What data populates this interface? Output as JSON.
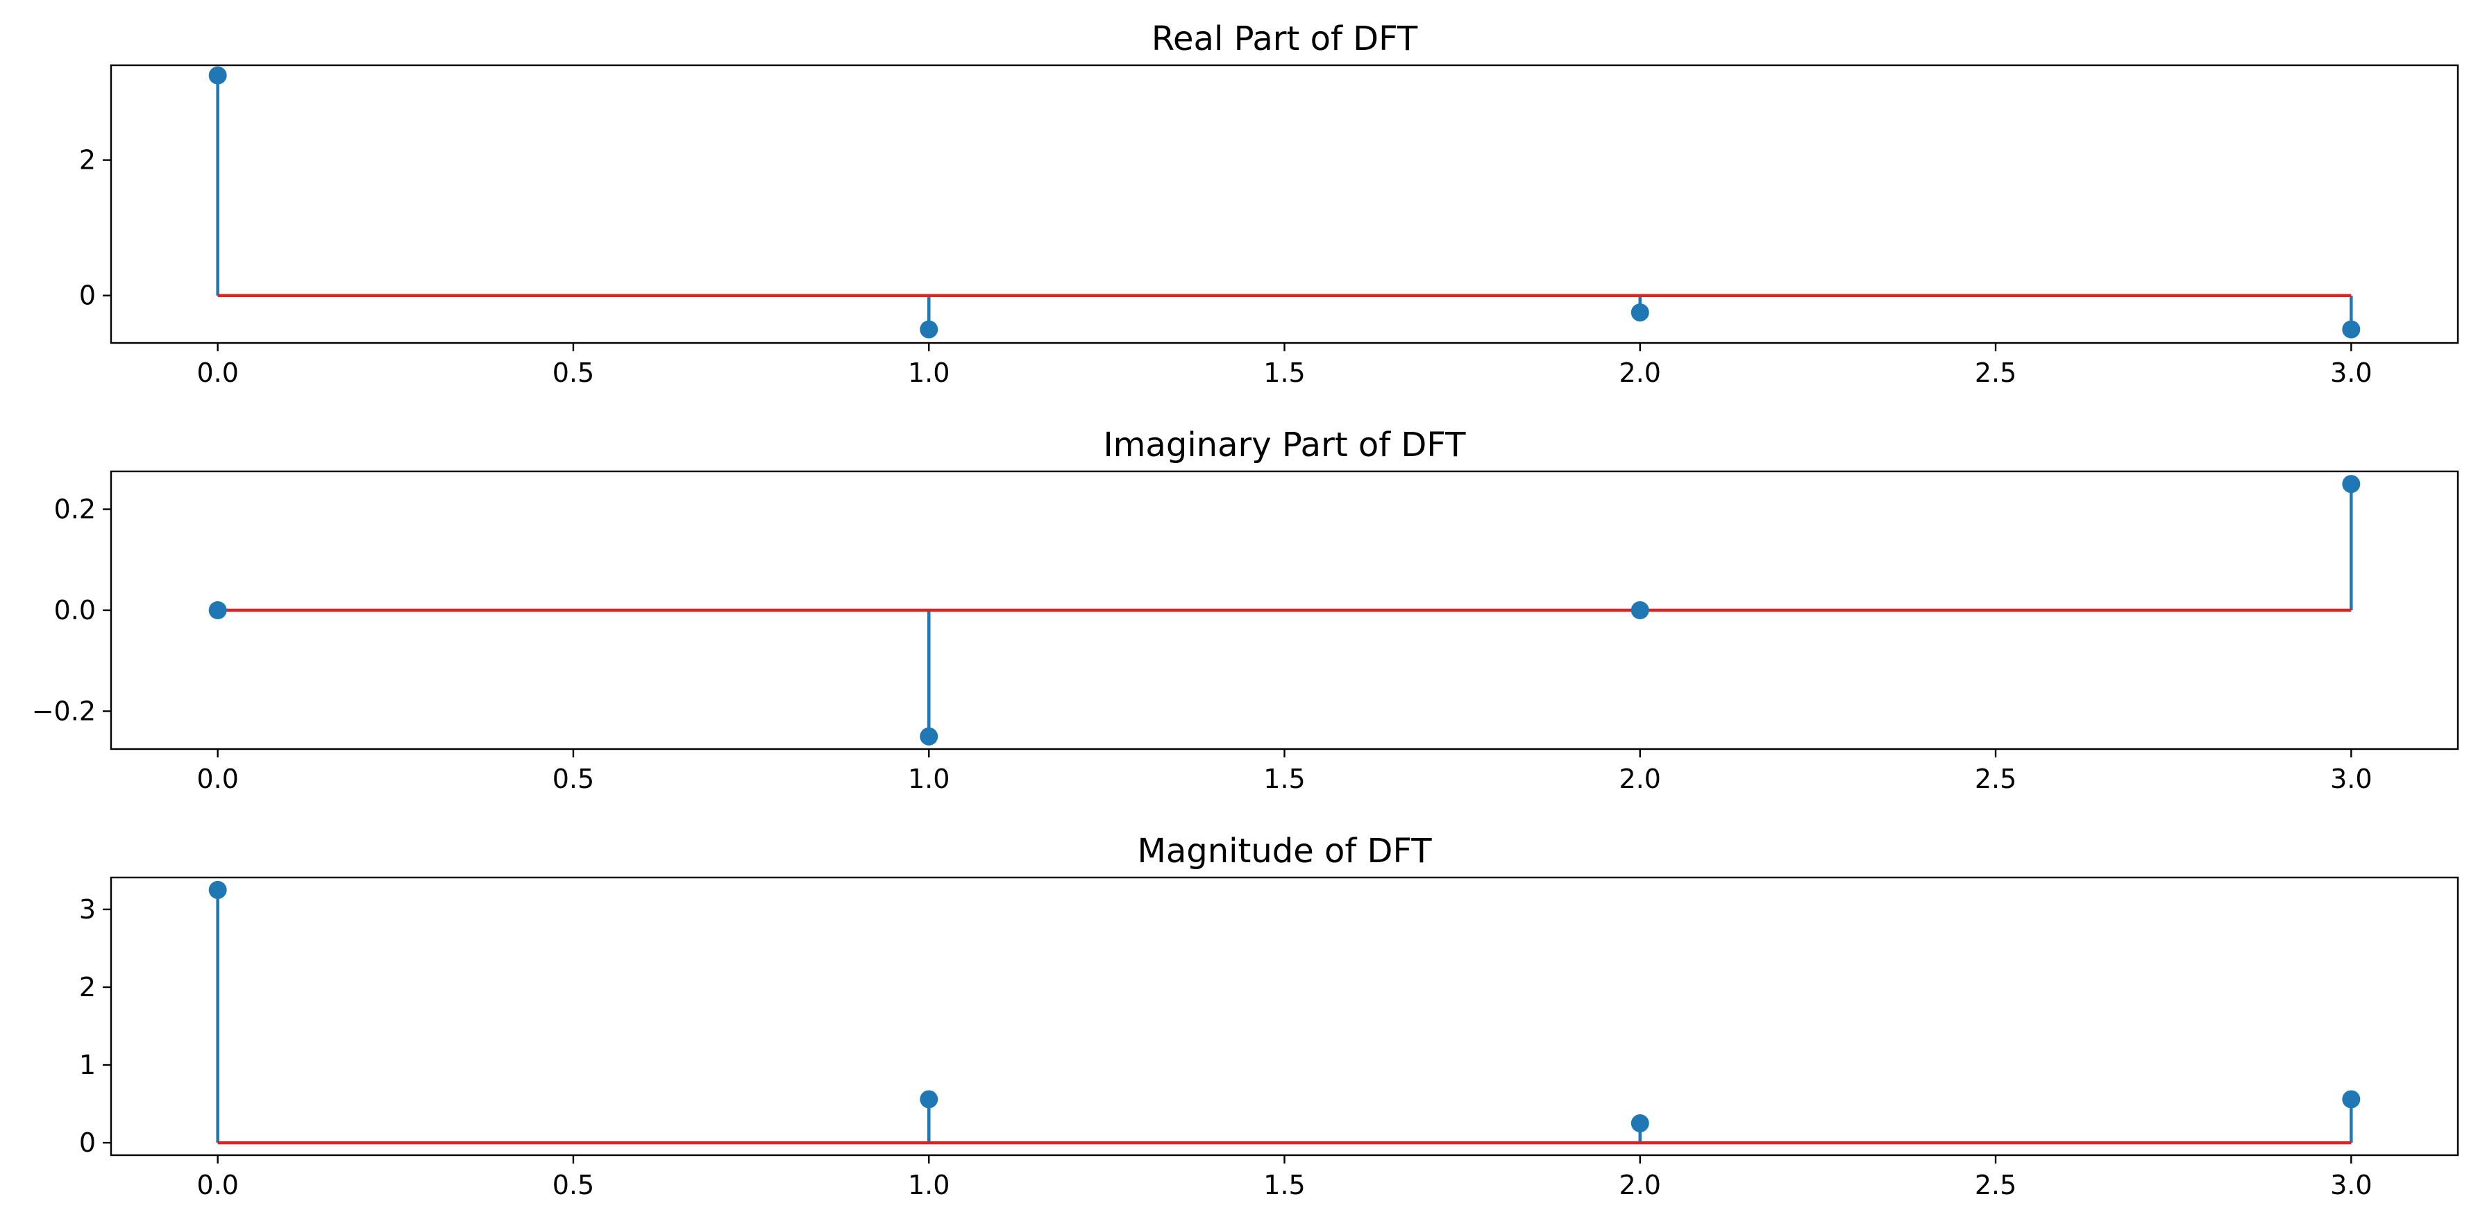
{
  "chart_data": [
    {
      "type": "stem",
      "title": "Real Part of DFT",
      "x": [
        0,
        1,
        2,
        3
      ],
      "values": [
        3.25,
        -0.5,
        -0.25,
        -0.5
      ],
      "xlim": [
        -0.15,
        3.15
      ],
      "ylim": [
        -0.7,
        3.4
      ],
      "xticks": [
        "0.0",
        "0.5",
        "1.0",
        "1.5",
        "2.0",
        "2.5",
        "3.0"
      ],
      "yticks": [
        "0",
        "2"
      ],
      "ytick_values": [
        0,
        2
      ],
      "baseline": 0
    },
    {
      "type": "stem",
      "title": "Imaginary Part of DFT",
      "x": [
        0,
        1,
        2,
        3
      ],
      "values": [
        0,
        -0.25,
        0,
        0.25
      ],
      "xlim": [
        -0.15,
        3.15
      ],
      "ylim": [
        -0.275,
        0.275
      ],
      "xticks": [
        "0.0",
        "0.5",
        "1.0",
        "1.5",
        "2.0",
        "2.5",
        "3.0"
      ],
      "yticks": [
        "0.2",
        "0.0",
        "−0.2"
      ],
      "ytick_values": [
        0.2,
        0.0,
        -0.2
      ],
      "baseline": 0
    },
    {
      "type": "stem",
      "title": "Magnitude of DFT",
      "x": [
        0,
        1,
        2,
        3
      ],
      "values": [
        3.25,
        0.559,
        0.25,
        0.559
      ],
      "xlim": [
        -0.15,
        3.15
      ],
      "ylim": [
        -0.16,
        3.41
      ],
      "xticks": [
        "0.0",
        "0.5",
        "1.0",
        "1.5",
        "2.0",
        "2.5",
        "3.0"
      ],
      "yticks": [
        "3",
        "2",
        "1",
        "0"
      ],
      "ytick_values": [
        3,
        2,
        1,
        0
      ],
      "baseline": 0
    }
  ],
  "colors": {
    "stem": "#1f77b4",
    "marker": "#1f77b4",
    "baseline": "#d62728",
    "axes": "#000000"
  }
}
